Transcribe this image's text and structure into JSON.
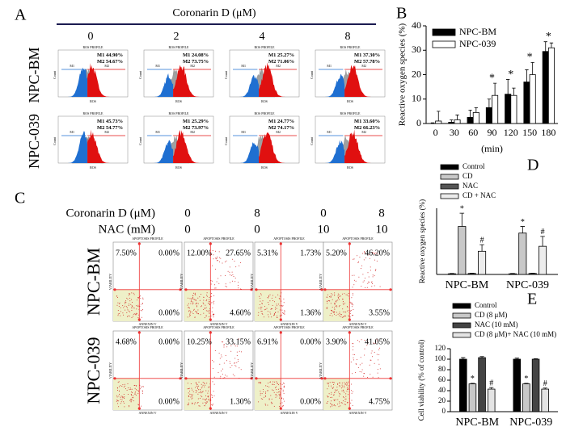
{
  "panel_labels": [
    "A",
    "B",
    "C",
    "D",
    "E"
  ],
  "panel_a": {
    "title": "Coronarin D (μM)",
    "columns": [
      "0",
      "2",
      "4",
      "8"
    ],
    "plot_title": "ROS PROFILE",
    "y_label": "Count",
    "x_label": "ROS",
    "gates": [
      "M1",
      "M2"
    ],
    "rows": [
      {
        "label": "NPC-BM",
        "m1": [
          "44.90%",
          "24.08%",
          "25.27%",
          "37.30%"
        ],
        "m2": [
          "54.67%",
          "73.75%",
          "71.06%",
          "57.78%"
        ]
      },
      {
        "label": "NPC-039",
        "m1": [
          "45.73%",
          "25.29%",
          "24.77%",
          "33.60%"
        ],
        "m2": [
          "54.77%",
          "73.97%",
          "74.17%",
          "66.23%"
        ]
      }
    ]
  },
  "panel_c": {
    "plot_title": "APOPTOSIS PROFILE",
    "x_label": "ANNEXIN V",
    "y_label": "VIABILITY",
    "conditions": [
      {
        "label": "Coronarin D (μM)",
        "values": [
          "0",
          "8",
          "0",
          "8"
        ]
      },
      {
        "label": "NAC (mM)",
        "values": [
          "0",
          "0",
          "10",
          "10"
        ]
      }
    ],
    "rows": [
      {
        "label": "NPC-BM",
        "plots": [
          [
            "7.50%",
            "0.00%",
            "0.00%"
          ],
          [
            "12.00%",
            "27.65%",
            "4.60%"
          ],
          [
            "5.31%",
            "1.73%",
            "1.36%"
          ],
          [
            "5.20%",
            "46.20%",
            "3.55%"
          ]
        ]
      },
      {
        "label": "NPC-039",
        "plots": [
          [
            "4.68%",
            "0.00%",
            "0.00%"
          ],
          [
            "10.25%",
            "33.15%",
            "1.30%"
          ],
          [
            "6.91%",
            "0.00%",
            "0.00%"
          ],
          [
            "3.90%",
            "41.05%",
            "4.75%"
          ]
        ]
      }
    ]
  },
  "chart_data": [
    {
      "type": "bar",
      "ylabel": "Reactive oxygen species (%)",
      "xlabel": "(min)",
      "categories": [
        "0",
        "30",
        "60",
        "90",
        "120",
        "150",
        "180"
      ],
      "series": [
        {
          "name": "NPC-BM",
          "color": "#000000",
          "values": [
            0,
            0.5,
            2.5,
            6.5,
            12,
            17,
            29.5
          ],
          "errors": [
            0.3,
            1,
            3,
            3.5,
            6,
            5,
            4
          ]
        },
        {
          "name": "NPC-039",
          "color": "#ffffff",
          "values": [
            1,
            1.5,
            4.5,
            11.5,
            11.5,
            20,
            31
          ],
          "errors": [
            4,
            2,
            2,
            5,
            3,
            5,
            2
          ]
        }
      ],
      "annotations": [
        null,
        null,
        null,
        "*",
        "*",
        "*",
        "*"
      ],
      "ylim": [
        0,
        40
      ],
      "yticks": [
        0,
        10,
        20,
        30,
        40
      ],
      "legend": "upper left"
    },
    {
      "type": "bar",
      "ylabel": "Reactive oxygen species (%)",
      "categories": [
        "NPC-BM",
        "NPC-039"
      ],
      "series": [
        {
          "name": "Control",
          "color": "#000000",
          "values": [
            0.2,
            0.2
          ],
          "errors": [
            0.1,
            0.1
          ]
        },
        {
          "name": "CD",
          "color": "#c8c8c8",
          "values": [
            14.5,
            12.5
          ],
          "errors": [
            4,
            2
          ],
          "annotations": [
            "*",
            "*"
          ]
        },
        {
          "name": "NAC",
          "color": "#555555",
          "values": [
            0.3,
            0.3
          ],
          "errors": [
            0.1,
            0.1
          ]
        },
        {
          "name": "CD + NAC",
          "color": "#ececec",
          "values": [
            7,
            8.5
          ],
          "errors": [
            2,
            3
          ],
          "annotations": [
            "#",
            "#"
          ]
        }
      ],
      "ylim": [
        0,
        20
      ],
      "legend": "top"
    },
    {
      "type": "bar",
      "ylabel": "Cell viability (% of control)",
      "categories": [
        "NPC-BM",
        "NPC-039"
      ],
      "series": [
        {
          "name": "Control",
          "color": "#000000",
          "values": [
            100,
            100
          ],
          "errors": [
            3,
            2
          ]
        },
        {
          "name": "CD (8 μM)",
          "color": "#c8c8c8",
          "values": [
            53,
            53
          ],
          "errors": [
            1,
            1
          ],
          "annotations": [
            "*",
            "*"
          ]
        },
        {
          "name": "NAC (10 mM)",
          "color": "#444444",
          "values": [
            103,
            100
          ],
          "errors": [
            2,
            1
          ]
        },
        {
          "name": "CD (8 μM)+ NAC (10 mM)",
          "color": "#e4e4e4",
          "values": [
            43,
            43
          ],
          "errors": [
            3,
            2
          ],
          "annotations": [
            "#",
            "#"
          ]
        }
      ],
      "ylim": [
        0,
        120
      ],
      "yticks": [
        0,
        20,
        40,
        60,
        80,
        100,
        120
      ],
      "legend": "top"
    }
  ]
}
